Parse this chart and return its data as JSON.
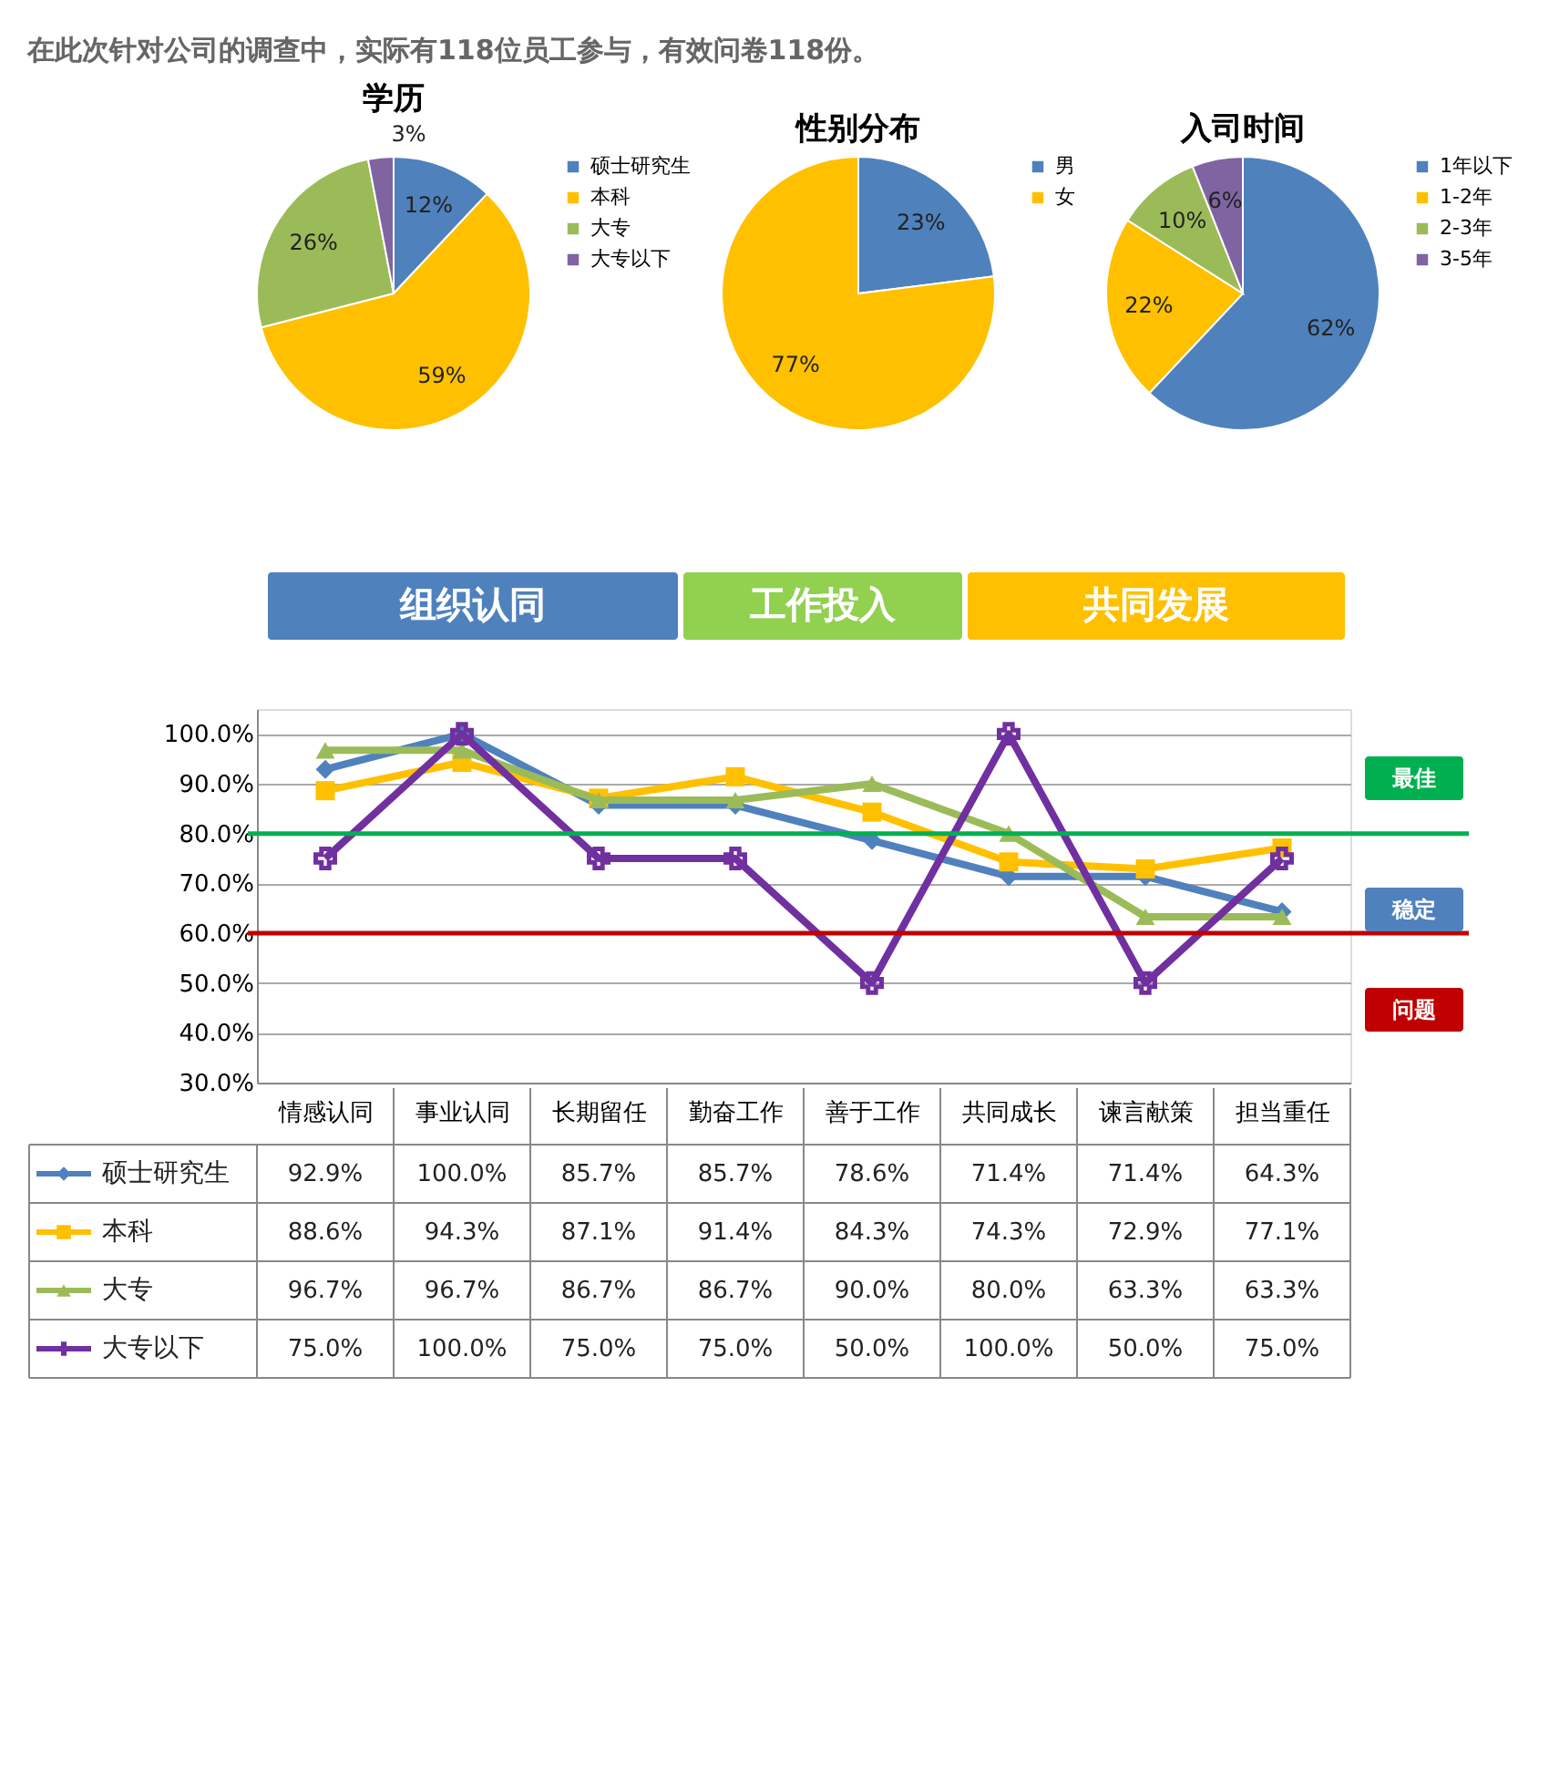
{
  "chart_data": [
    {
      "type": "pie",
      "title": "学历",
      "annotations": [
        "在此次针对公司的调查中，实际有118位员工参与，有效问卷118份。"
      ],
      "categories": [
        "硕士研究生",
        "本科",
        "大专",
        "大专以下"
      ],
      "values": [
        12,
        59,
        26,
        3
      ],
      "value_labels": [
        "12%",
        "59%",
        "26%",
        "3%"
      ],
      "colors": [
        "#4f81bd",
        "#ffc000",
        "#9bbb59",
        "#8064a2"
      ],
      "legend": "right"
    },
    {
      "type": "pie",
      "title": "性别分布",
      "categories": [
        "男",
        "女"
      ],
      "values": [
        23,
        77
      ],
      "value_labels": [
        "23%",
        "77%"
      ],
      "colors": [
        "#4f81bd",
        "#ffc000"
      ],
      "legend": "right"
    },
    {
      "type": "pie",
      "title": "入司时间",
      "categories": [
        "1年以下",
        "1-2年",
        "2-3年",
        "3-5年"
      ],
      "values": [
        62,
        22,
        10,
        6
      ],
      "value_labels": [
        "62%",
        "22%",
        "10%",
        "6%"
      ],
      "colors": [
        "#4f81bd",
        "#ffc000",
        "#9bbb59",
        "#8064a2"
      ],
      "legend": "right"
    },
    {
      "type": "line",
      "categories": [
        "情感认同",
        "事业认同",
        "长期留任",
        "勤奋工作",
        "善于工作",
        "共同成长",
        "谏言献策",
        "担当重任"
      ],
      "annotations": [
        "组织认同",
        "工作投入",
        "共同发展",
        "最佳",
        "稳定",
        "问题"
      ],
      "series": [
        {
          "name": "硕士研究生",
          "color": "#4f81bd",
          "marker": "diamond",
          "values": [
            92.9,
            100.0,
            85.7,
            85.7,
            78.6,
            71.4,
            71.4,
            64.3
          ],
          "value_labels": [
            "92.9%",
            "100.0%",
            "85.7%",
            "85.7%",
            "78.6%",
            "71.4%",
            "71.4%",
            "64.3%"
          ]
        },
        {
          "name": "本科",
          "color": "#ffc000",
          "marker": "square",
          "values": [
            88.6,
            94.3,
            87.1,
            91.4,
            84.3,
            74.3,
            72.9,
            77.1
          ],
          "value_labels": [
            "88.6%",
            "94.3%",
            "87.1%",
            "91.4%",
            "84.3%",
            "74.3%",
            "72.9%",
            "77.1%"
          ]
        },
        {
          "name": "大专",
          "color": "#9bbb59",
          "marker": "triangle",
          "values": [
            96.7,
            96.7,
            86.7,
            86.7,
            90.0,
            80.0,
            63.3,
            63.3
          ],
          "value_labels": [
            "96.7%",
            "96.7%",
            "86.7%",
            "86.7%",
            "90.0%",
            "80.0%",
            "63.3%",
            "63.3%"
          ]
        },
        {
          "name": "大专以下",
          "color": "#7030a0",
          "marker": "cross",
          "values": [
            75.0,
            100.0,
            75.0,
            75.0,
            50.0,
            100.0,
            50.0,
            75.0
          ],
          "value_labels": [
            "75.0%",
            "100.0%",
            "75.0%",
            "75.0%",
            "50.0%",
            "100.0%",
            "50.0%",
            "75.0%"
          ]
        }
      ],
      "ylim": [
        30,
        105
      ],
      "yticks": [
        {
          "value": 30,
          "label": "30.0%"
        },
        {
          "value": 40,
          "label": "40.0%"
        },
        {
          "value": 50,
          "label": "50.0%"
        },
        {
          "value": 60,
          "label": "60.0%"
        },
        {
          "value": 70,
          "label": "70.0%"
        },
        {
          "value": 80,
          "label": "80.0%"
        },
        {
          "value": 90,
          "label": "90.0%"
        },
        {
          "value": 100,
          "label": "100.0%"
        }
      ],
      "ref_lines": [
        {
          "axis": "y",
          "value": 80,
          "color": "#00b050"
        },
        {
          "axis": "y",
          "value": 60,
          "color": "#c00000"
        }
      ],
      "grid": "y",
      "legend": "bottom",
      "line_style": "solid"
    }
  ]
}
